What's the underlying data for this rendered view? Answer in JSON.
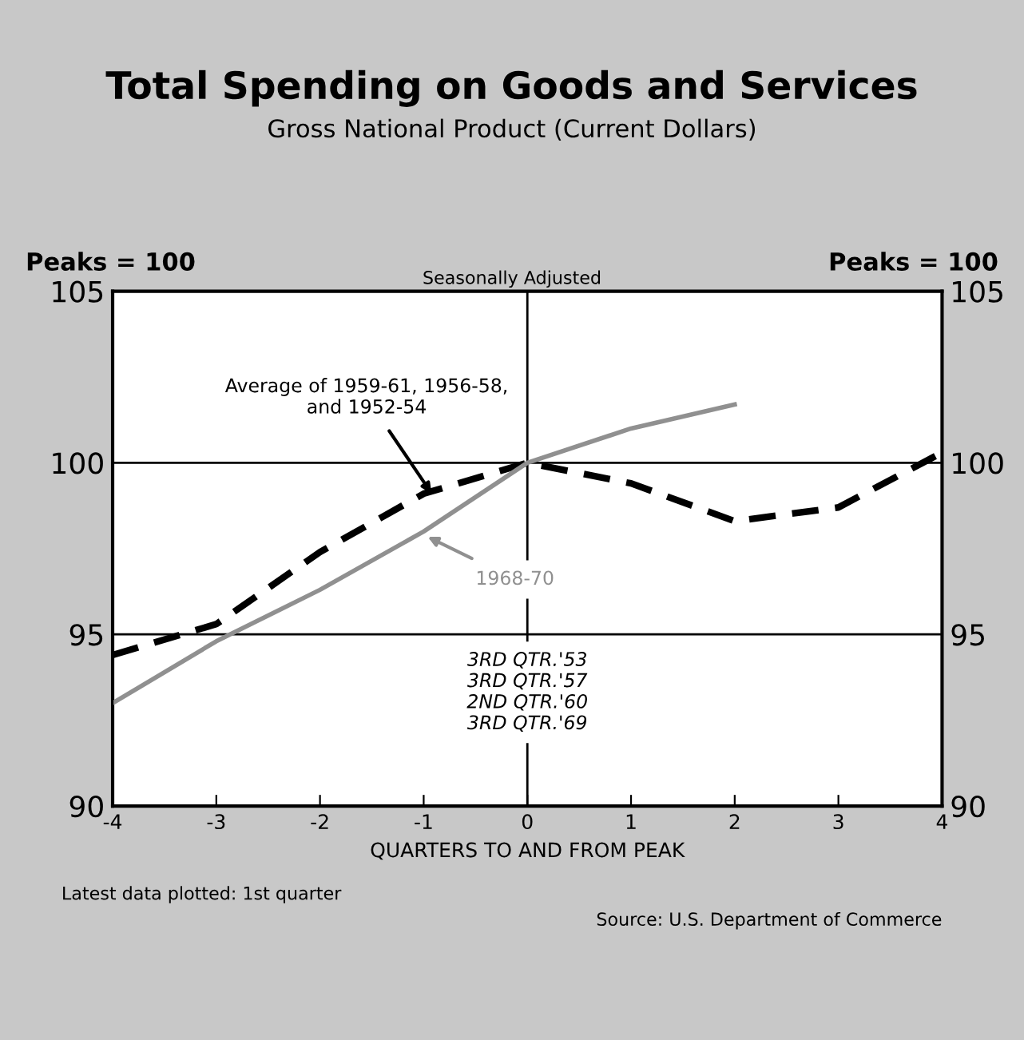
{
  "chart_data": {
    "type": "line",
    "title": "Total Spending on Goods and Services",
    "subtitle": "Gross National Product (Current Dollars)",
    "xlabel": "QUARTERS TO AND FROM PEAK",
    "ylabel": "Peaks = 100",
    "y2label": "Peaks = 100",
    "x": [
      -4,
      -3,
      -2,
      -1,
      0,
      1,
      2,
      3,
      4
    ],
    "series": [
      {
        "name": "Average of 1959-61, 1956-58, and 1952-54",
        "color": "#000000",
        "line_style": "dashed",
        "values": [
          94.4,
          95.3,
          97.4,
          99.1,
          100,
          99.4,
          98.3,
          98.7,
          100.3
        ]
      },
      {
        "name": "1968-70",
        "color": "#909090",
        "line_style": "solid",
        "values": [
          93.0,
          94.8,
          96.3,
          98.0,
          100,
          101.0,
          101.7,
          null,
          null
        ]
      }
    ],
    "xlim": [
      -4,
      4
    ],
    "xticks": [
      -4,
      -3,
      -2,
      -1,
      0,
      1,
      2,
      3,
      4
    ],
    "ylim": [
      90,
      105
    ],
    "yticks": [
      90,
      95,
      100,
      105
    ],
    "y2lim": [
      90,
      105
    ],
    "y2ticks": [
      90,
      95,
      100,
      105
    ],
    "grid": "y",
    "legend": false,
    "marker": "none",
    "ref_lines": [
      {
        "axis": "x",
        "value": 0,
        "label": "3RD QTR.'53\n3RD QTR.'57\n2ND QTR.'60\n3RD QTR.'69",
        "color": "#000000"
      }
    ],
    "annotations": [
      "Seasonally Adjusted",
      "Latest data plotted: 1st quarter",
      "Source: U.S. Department of Commerce"
    ]
  }
}
